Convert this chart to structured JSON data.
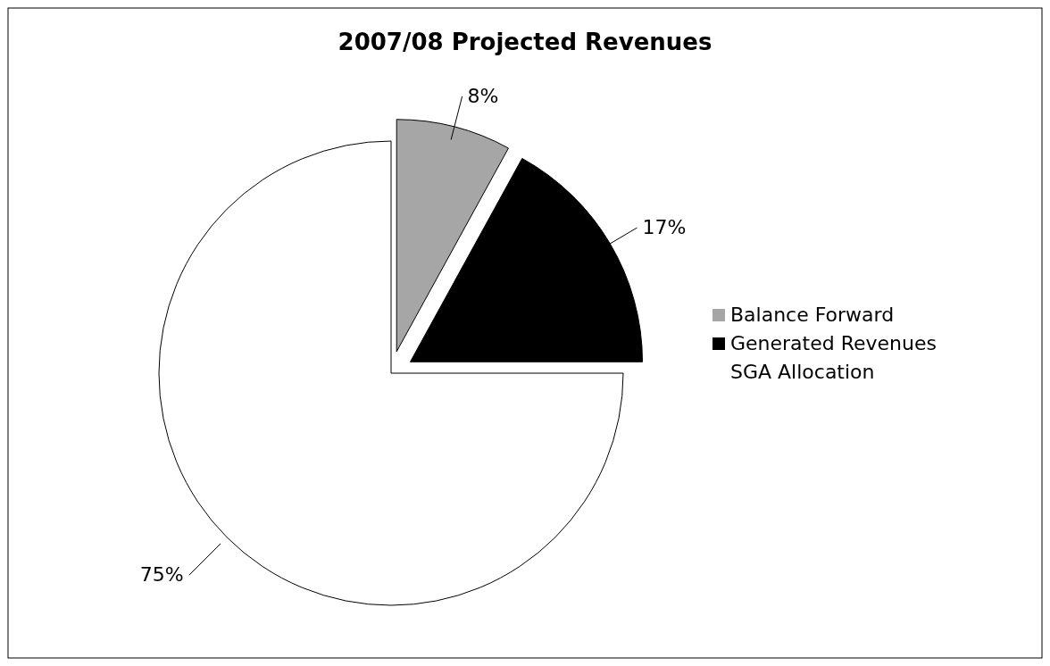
{
  "chart_data": {
    "type": "pie",
    "title": "2007/08 Projected Revenues",
    "categories": [
      "Balance Forward",
      "Generated Revenues",
      "SGA Allocation"
    ],
    "values": [
      8,
      17,
      75
    ],
    "colors": [
      "#a6a6a6",
      "#000000",
      "#ffffff"
    ],
    "value_labels": [
      "8%",
      "17%",
      "75%"
    ],
    "legend": "right"
  }
}
